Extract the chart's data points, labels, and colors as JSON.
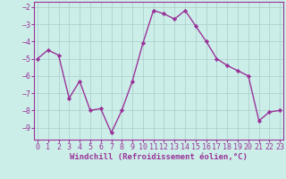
{
  "x": [
    0,
    1,
    2,
    3,
    4,
    5,
    6,
    7,
    8,
    9,
    10,
    11,
    12,
    13,
    14,
    15,
    16,
    17,
    18,
    19,
    20,
    21,
    22,
    23
  ],
  "y": [
    -5.0,
    -4.5,
    -4.8,
    -7.3,
    -6.3,
    -8.0,
    -7.9,
    -9.3,
    -8.0,
    -6.3,
    -4.1,
    -2.2,
    -2.4,
    -2.7,
    -2.2,
    -3.1,
    -4.0,
    -5.0,
    -5.4,
    -5.7,
    -6.0,
    -8.6,
    -8.1,
    -8.0
  ],
  "line_color": "#993399",
  "marker": "D",
  "markersize": 2.2,
  "linewidth": 1.0,
  "bg_color": "#cceee8",
  "grid_color": "#aacccc",
  "xlabel": "Windchill (Refroidissement éolien,°C)",
  "xlabel_color": "#993399",
  "xlabel_fontsize": 6.5,
  "tick_color": "#993399",
  "tick_fontsize": 6.0,
  "ylim": [
    -9.7,
    -1.7
  ],
  "yticks": [
    -9,
    -8,
    -7,
    -6,
    -5,
    -4,
    -3,
    -2
  ],
  "xlim": [
    -0.3,
    23.3
  ],
  "xticks": [
    0,
    1,
    2,
    3,
    4,
    5,
    6,
    7,
    8,
    9,
    10,
    11,
    12,
    13,
    14,
    15,
    16,
    17,
    18,
    19,
    20,
    21,
    22,
    23
  ]
}
